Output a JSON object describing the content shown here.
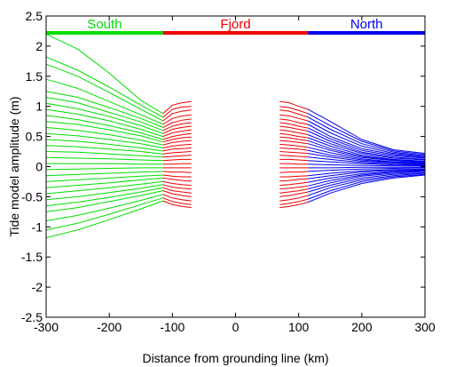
{
  "chart_data": {
    "type": "line",
    "title": "",
    "xlabel": "Distance from grounding line (km)",
    "ylabel": "Tide model amplitude (m)",
    "xlim": [
      -300,
      300
    ],
    "ylim": [
      -2.5,
      2.5
    ],
    "xticks": [
      -300,
      -200,
      -100,
      0,
      100,
      200,
      300
    ],
    "yticks": [
      -2.5,
      -2,
      -1.5,
      -1,
      -0.5,
      0,
      0.5,
      1,
      1.5,
      2,
      2.5
    ],
    "xtick_labels": [
      "-300",
      "-200",
      "-100",
      "0",
      "100",
      "200",
      "300"
    ],
    "ytick_labels": [
      "-2.5",
      "-2",
      "-1.5",
      "-1",
      "-0.5",
      "0",
      "0.5",
      "1",
      "1.5",
      "2",
      "2.5"
    ],
    "grid": false,
    "colors": {
      "South": "#00dd00",
      "Fjord": "#ee0000",
      "North": "#0000ee"
    },
    "region_bar": {
      "y": 2.22,
      "segments": [
        {
          "label": "South",
          "x": [
            -300,
            -115
          ],
          "color": "#00dd00"
        },
        {
          "label": "Fjord",
          "x": [
            -115,
            115
          ],
          "color": "#ee0000"
        },
        {
          "label": "North",
          "x": [
            115,
            300
          ],
          "color": "#0000ee"
        }
      ]
    },
    "south_x": [
      -300,
      -250,
      -200,
      -150,
      -115
    ],
    "fjord_left_x": [
      -115,
      -100,
      -85,
      -70
    ],
    "fjord_right_x": [
      70,
      85,
      100,
      115
    ],
    "north_x": [
      115,
      150,
      200,
      250,
      300
    ],
    "series": [
      {
        "south": [
          2.2,
          1.95,
          1.55,
          1.1,
          0.88
        ],
        "fjord_left": [
          0.88,
          1.02,
          1.06,
          1.08
        ],
        "fjord_right": [
          1.08,
          1.06,
          1.0,
          0.95
        ],
        "north": [
          0.95,
          0.75,
          0.45,
          0.28,
          0.22
        ]
      },
      {
        "south": [
          1.82,
          1.6,
          1.32,
          1.02,
          0.82
        ],
        "fjord_left": [
          0.82,
          0.95,
          0.99,
          1.0
        ],
        "fjord_right": [
          1.0,
          0.98,
          0.93,
          0.88
        ],
        "north": [
          0.88,
          0.68,
          0.42,
          0.26,
          0.2
        ]
      },
      {
        "south": [
          1.7,
          1.5,
          1.23,
          0.95,
          0.76
        ],
        "fjord_left": [
          0.76,
          0.88,
          0.92,
          0.94
        ],
        "fjord_right": [
          0.94,
          0.92,
          0.87,
          0.82
        ],
        "north": [
          0.82,
          0.62,
          0.38,
          0.24,
          0.18
        ]
      },
      {
        "south": [
          1.45,
          1.3,
          1.08,
          0.86,
          0.7
        ],
        "fjord_left": [
          0.7,
          0.8,
          0.84,
          0.86
        ],
        "fjord_right": [
          0.86,
          0.84,
          0.8,
          0.76
        ],
        "north": [
          0.76,
          0.56,
          0.34,
          0.22,
          0.17
        ]
      },
      {
        "south": [
          1.25,
          1.15,
          0.98,
          0.8,
          0.65
        ],
        "fjord_left": [
          0.65,
          0.73,
          0.77,
          0.79
        ],
        "fjord_right": [
          0.79,
          0.77,
          0.73,
          0.7
        ],
        "north": [
          0.7,
          0.5,
          0.3,
          0.2,
          0.15
        ]
      },
      {
        "south": [
          1.15,
          1.06,
          0.9,
          0.74,
          0.6
        ],
        "fjord_left": [
          0.6,
          0.67,
          0.71,
          0.73
        ],
        "fjord_right": [
          0.73,
          0.71,
          0.67,
          0.64
        ],
        "north": [
          0.64,
          0.46,
          0.27,
          0.18,
          0.14
        ]
      },
      {
        "south": [
          1.05,
          0.96,
          0.83,
          0.68,
          0.55
        ],
        "fjord_left": [
          0.55,
          0.62,
          0.65,
          0.67
        ],
        "fjord_right": [
          0.67,
          0.65,
          0.62,
          0.59
        ],
        "north": [
          0.59,
          0.42,
          0.24,
          0.16,
          0.12
        ]
      },
      {
        "south": [
          0.95,
          0.87,
          0.76,
          0.62,
          0.5
        ],
        "fjord_left": [
          0.5,
          0.56,
          0.59,
          0.61
        ],
        "fjord_right": [
          0.61,
          0.59,
          0.56,
          0.53
        ],
        "north": [
          0.53,
          0.38,
          0.22,
          0.14,
          0.11
        ]
      },
      {
        "south": [
          0.85,
          0.78,
          0.68,
          0.56,
          0.45
        ],
        "fjord_left": [
          0.45,
          0.5,
          0.53,
          0.55
        ],
        "fjord_right": [
          0.55,
          0.53,
          0.5,
          0.48
        ],
        "north": [
          0.48,
          0.34,
          0.19,
          0.12,
          0.09
        ]
      },
      {
        "south": [
          0.75,
          0.7,
          0.61,
          0.51,
          0.41
        ],
        "fjord_left": [
          0.41,
          0.45,
          0.48,
          0.49
        ],
        "fjord_right": [
          0.49,
          0.48,
          0.45,
          0.43
        ],
        "north": [
          0.43,
          0.3,
          0.17,
          0.11,
          0.08
        ]
      },
      {
        "south": [
          0.65,
          0.6,
          0.53,
          0.44,
          0.36
        ],
        "fjord_left": [
          0.36,
          0.4,
          0.42,
          0.43
        ],
        "fjord_right": [
          0.43,
          0.42,
          0.4,
          0.38
        ],
        "north": [
          0.38,
          0.27,
          0.15,
          0.1,
          0.07
        ]
      },
      {
        "south": [
          0.55,
          0.51,
          0.45,
          0.38,
          0.31
        ],
        "fjord_left": [
          0.31,
          0.34,
          0.36,
          0.37
        ],
        "fjord_right": [
          0.37,
          0.36,
          0.34,
          0.32
        ],
        "north": [
          0.32,
          0.23,
          0.13,
          0.08,
          0.06
        ]
      },
      {
        "south": [
          0.45,
          0.42,
          0.37,
          0.31,
          0.26
        ],
        "fjord_left": [
          0.26,
          0.29,
          0.3,
          0.31
        ],
        "fjord_right": [
          0.31,
          0.3,
          0.29,
          0.27
        ],
        "north": [
          0.27,
          0.19,
          0.11,
          0.07,
          0.05
        ]
      },
      {
        "south": [
          0.35,
          0.33,
          0.29,
          0.25,
          0.21
        ],
        "fjord_left": [
          0.21,
          0.23,
          0.24,
          0.25
        ],
        "fjord_right": [
          0.25,
          0.24,
          0.23,
          0.22
        ],
        "north": [
          0.22,
          0.16,
          0.09,
          0.06,
          0.04
        ]
      },
      {
        "south": [
          0.25,
          0.24,
          0.21,
          0.18,
          0.16
        ],
        "fjord_left": [
          0.16,
          0.17,
          0.18,
          0.19
        ],
        "fjord_right": [
          0.19,
          0.18,
          0.17,
          0.16
        ],
        "north": [
          0.16,
          0.12,
          0.07,
          0.04,
          0.03
        ]
      },
      {
        "south": [
          0.15,
          0.14,
          0.13,
          0.11,
          0.1
        ],
        "fjord_left": [
          0.1,
          0.11,
          0.12,
          0.12
        ],
        "fjord_right": [
          0.12,
          0.12,
          0.11,
          0.1
        ],
        "north": [
          0.1,
          0.08,
          0.05,
          0.03,
          0.02
        ]
      },
      {
        "south": [
          0.05,
          0.05,
          0.05,
          0.04,
          0.04
        ],
        "fjord_left": [
          0.04,
          0.04,
          0.05,
          0.05
        ],
        "fjord_right": [
          0.05,
          0.05,
          0.04,
          0.04
        ],
        "north": [
          0.04,
          0.03,
          0.02,
          0.01,
          0.01
        ]
      },
      {
        "south": [
          -0.05,
          -0.04,
          -0.03,
          -0.02,
          -0.02
        ],
        "fjord_left": [
          -0.02,
          -0.02,
          -0.02,
          -0.02
        ],
        "fjord_right": [
          -0.02,
          -0.02,
          -0.02,
          -0.02
        ],
        "north": [
          -0.02,
          -0.02,
          -0.01,
          -0.01,
          -0.01
        ]
      },
      {
        "south": [
          -0.15,
          -0.13,
          -0.11,
          -0.09,
          -0.08
        ],
        "fjord_left": [
          -0.08,
          -0.09,
          -0.09,
          -0.1
        ],
        "fjord_right": [
          -0.1,
          -0.09,
          -0.09,
          -0.08
        ],
        "north": [
          -0.08,
          -0.06,
          -0.04,
          -0.03,
          -0.02
        ]
      },
      {
        "south": [
          -0.25,
          -0.22,
          -0.19,
          -0.16,
          -0.14
        ],
        "fjord_left": [
          -0.14,
          -0.16,
          -0.17,
          -0.17
        ],
        "fjord_right": [
          -0.17,
          -0.17,
          -0.16,
          -0.15
        ],
        "north": [
          -0.15,
          -0.11,
          -0.07,
          -0.05,
          -0.04
        ]
      },
      {
        "south": [
          -0.35,
          -0.31,
          -0.27,
          -0.22,
          -0.19
        ],
        "fjord_left": [
          -0.19,
          -0.21,
          -0.23,
          -0.24
        ],
        "fjord_right": [
          -0.24,
          -0.23,
          -0.21,
          -0.2
        ],
        "north": [
          -0.2,
          -0.15,
          -0.09,
          -0.06,
          -0.05
        ]
      },
      {
        "south": [
          -0.45,
          -0.4,
          -0.35,
          -0.29,
          -0.25
        ],
        "fjord_left": [
          -0.25,
          -0.28,
          -0.3,
          -0.31
        ],
        "fjord_right": [
          -0.31,
          -0.3,
          -0.28,
          -0.26
        ],
        "north": [
          -0.26,
          -0.19,
          -0.12,
          -0.08,
          -0.06
        ]
      },
      {
        "south": [
          -0.55,
          -0.5,
          -0.43,
          -0.36,
          -0.3
        ],
        "fjord_left": [
          -0.3,
          -0.34,
          -0.36,
          -0.37
        ],
        "fjord_right": [
          -0.37,
          -0.36,
          -0.34,
          -0.32
        ],
        "north": [
          -0.32,
          -0.23,
          -0.14,
          -0.09,
          -0.07
        ]
      },
      {
        "south": [
          -0.65,
          -0.59,
          -0.51,
          -0.42,
          -0.35
        ],
        "fjord_left": [
          -0.35,
          -0.4,
          -0.42,
          -0.44
        ],
        "fjord_right": [
          -0.44,
          -0.42,
          -0.4,
          -0.37
        ],
        "north": [
          -0.37,
          -0.27,
          -0.16,
          -0.11,
          -0.08
        ]
      },
      {
        "south": [
          -0.75,
          -0.68,
          -0.58,
          -0.48,
          -0.4
        ],
        "fjord_left": [
          -0.4,
          -0.45,
          -0.48,
          -0.5
        ],
        "fjord_right": [
          -0.5,
          -0.48,
          -0.45,
          -0.42
        ],
        "north": [
          -0.42,
          -0.31,
          -0.19,
          -0.13,
          -0.1
        ]
      },
      {
        "south": [
          -0.9,
          -0.81,
          -0.69,
          -0.56,
          -0.46
        ],
        "fjord_left": [
          -0.46,
          -0.52,
          -0.55,
          -0.57
        ],
        "fjord_right": [
          -0.57,
          -0.55,
          -0.52,
          -0.48
        ],
        "north": [
          -0.48,
          -0.35,
          -0.22,
          -0.15,
          -0.11
        ]
      },
      {
        "south": [
          -1.05,
          -0.94,
          -0.79,
          -0.63,
          -0.52
        ],
        "fjord_left": [
          -0.52,
          -0.58,
          -0.61,
          -0.63
        ],
        "fjord_right": [
          -0.63,
          -0.61,
          -0.58,
          -0.54
        ],
        "north": [
          -0.54,
          -0.4,
          -0.25,
          -0.17,
          -0.13
        ]
      },
      {
        "south": [
          -1.18,
          -1.05,
          -0.88,
          -0.7,
          -0.57
        ],
        "fjord_left": [
          -0.57,
          -0.63,
          -0.66,
          -0.68
        ],
        "fjord_right": [
          -0.68,
          -0.66,
          -0.63,
          -0.59
        ],
        "north": [
          -0.59,
          -0.44,
          -0.28,
          -0.19,
          -0.14
        ]
      }
    ]
  }
}
